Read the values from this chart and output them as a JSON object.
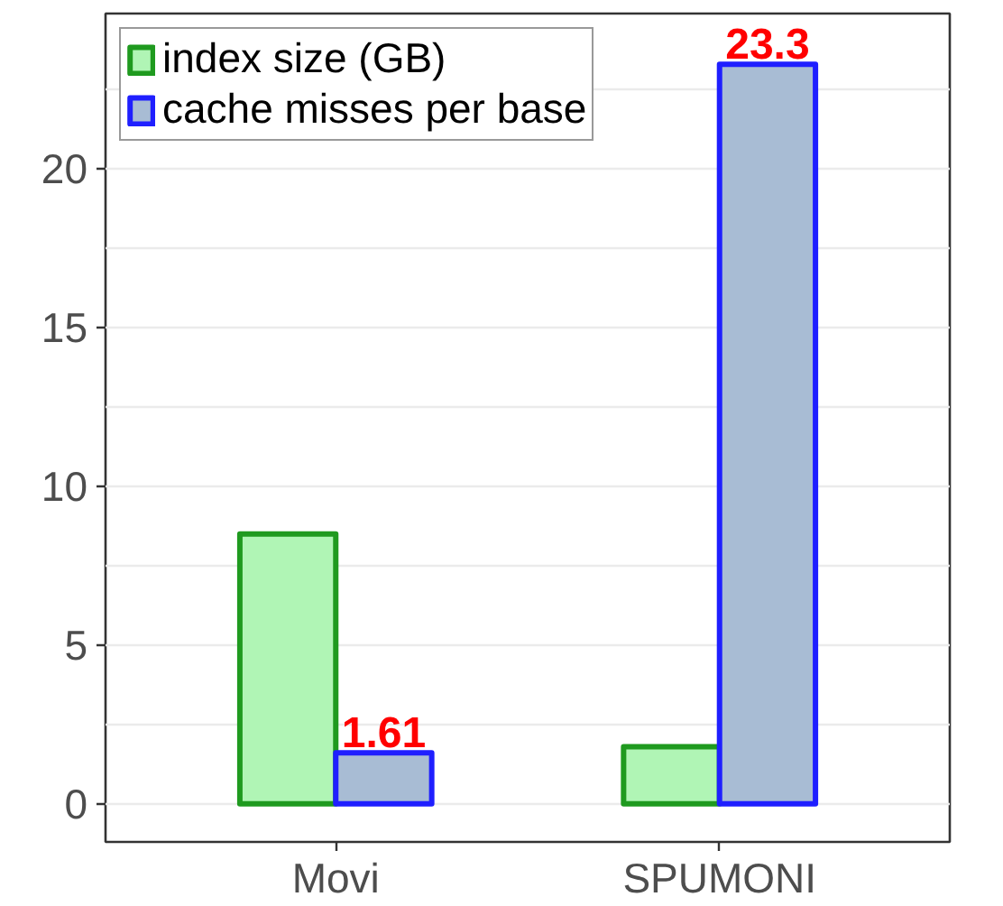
{
  "chart_data": {
    "type": "bar",
    "categories": [
      "Movi",
      "SPUMONI"
    ],
    "series": [
      {
        "name": "index size (GB)",
        "color": "#b0f5b5",
        "values": [
          8.5,
          1.8
        ]
      },
      {
        "name": "cache misses per base",
        "color": "#a8bcd4",
        "values": [
          1.61,
          23.3
        ],
        "value_labels": [
          "1.61",
          "23.3"
        ]
      }
    ],
    "ylim": [
      -1.2,
      24.9
    ],
    "yticks": [
      0,
      {
        "value": 2.5,
        "label": null
      },
      5,
      {
        "value": 7.5,
        "label": null
      },
      10,
      {
        "value": 12.5,
        "label": null
      },
      15,
      {
        "value": 17.5,
        "label": null
      },
      20,
      {
        "value": 22.5,
        "label": null
      }
    ],
    "grid": "y",
    "legend": "top left"
  }
}
